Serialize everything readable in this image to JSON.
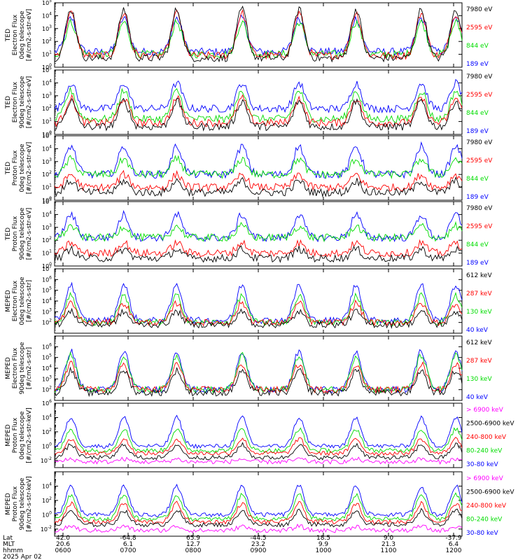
{
  "colors": {
    "blue": "#0000ff",
    "red": "#ff0000",
    "green": "#00dd00",
    "black": "#000000",
    "magenta": "#ff00ff"
  },
  "footer": {
    "row_labels": [
      "Lat",
      "MLT",
      "hhmm",
      "2025 Apr 02"
    ],
    "lat": [
      "42.0",
      "-64.8",
      "65.9",
      "-44.5",
      "18.5",
      "9.0",
      "-37.9"
    ],
    "mlt": [
      "20.6",
      "6.1",
      "12.7",
      "23.2",
      "9.9",
      "21.3",
      "6.4"
    ],
    "hhmm": [
      "0600",
      "0700",
      "0800",
      "0900",
      "1000",
      "1100",
      "1200"
    ]
  },
  "chart_data": [
    {
      "type": "line",
      "ylabel": [
        "TED",
        "Electron Flux",
        "0deg telescope",
        "[#/cm2-s-str-eV]"
      ],
      "y_scale": "log",
      "ylim_exp": [
        0,
        5
      ],
      "y_tick_exps": [
        0,
        1,
        2,
        3,
        4,
        5
      ],
      "legend": [
        {
          "text": "7980 eV",
          "color": "black"
        },
        {
          "text": "2595 eV",
          "color": "red"
        },
        {
          "text": "844 eV",
          "color": "green"
        },
        {
          "text": "189 eV",
          "color": "blue"
        }
      ],
      "series": [
        {
          "color": "blue",
          "base": 1.2,
          "peak": 3.8
        },
        {
          "color": "green",
          "base": 1.0,
          "peak": 3.5
        },
        {
          "color": "red",
          "base": 0.9,
          "peak": 4.2
        },
        {
          "color": "black",
          "base": 0.7,
          "peak": 4.5
        }
      ]
    },
    {
      "type": "line",
      "ylabel": [
        "TED",
        "Electron Flux",
        "90deg telescope",
        "[#/cm2-s-str-eV]"
      ],
      "y_scale": "log",
      "ylim_exp": [
        0,
        5
      ],
      "y_tick_exps": [
        0,
        1,
        2,
        3,
        4,
        5
      ],
      "legend": [
        {
          "text": "7980 eV",
          "color": "black"
        },
        {
          "text": "2595 eV",
          "color": "red"
        },
        {
          "text": "844 eV",
          "color": "green"
        },
        {
          "text": "189 eV",
          "color": "blue"
        }
      ],
      "series": [
        {
          "color": "blue",
          "base": 2.0,
          "peak": 4.0
        },
        {
          "color": "green",
          "base": 1.2,
          "peak": 3.4
        },
        {
          "color": "red",
          "base": 0.9,
          "peak": 2.8
        },
        {
          "color": "black",
          "base": 0.6,
          "peak": 2.6
        }
      ]
    },
    {
      "type": "line",
      "ylabel": [
        "TED",
        "Proton Flux",
        "0deg telescope",
        "[#/cm2-s-str-eV]"
      ],
      "y_scale": "log",
      "ylim_exp": [
        0,
        5
      ],
      "y_tick_exps": [
        0,
        1,
        2,
        3,
        4,
        5
      ],
      "legend": [
        {
          "text": "7980 eV",
          "color": "black"
        },
        {
          "text": "2595 eV",
          "color": "red"
        },
        {
          "text": "844 eV",
          "color": "green"
        },
        {
          "text": "189 eV",
          "color": "blue"
        }
      ],
      "series": [
        {
          "color": "blue",
          "base": 2.0,
          "peak": 4.2
        },
        {
          "color": "green",
          "base": 2.0,
          "peak": 3.2
        },
        {
          "color": "red",
          "base": 1.0,
          "peak": 2.0
        },
        {
          "color": "black",
          "base": 0.6,
          "peak": 1.5
        }
      ]
    },
    {
      "type": "line",
      "ylabel": [
        "TED",
        "Proton Flux",
        "90deg telescope",
        "[#/cm2-s-str-eV]"
      ],
      "y_scale": "log",
      "ylim_exp": [
        0,
        5
      ],
      "y_tick_exps": [
        0,
        1,
        2,
        3,
        4,
        5
      ],
      "legend": [
        {
          "text": "7980 eV",
          "color": "black"
        },
        {
          "text": "2595 eV",
          "color": "red"
        },
        {
          "text": "844 eV",
          "color": "green"
        },
        {
          "text": "189 eV",
          "color": "blue"
        }
      ],
      "series": [
        {
          "color": "blue",
          "base": 2.2,
          "peak": 4.0
        },
        {
          "color": "green",
          "base": 2.2,
          "peak": 3.1
        },
        {
          "color": "red",
          "base": 1.0,
          "peak": 1.8
        },
        {
          "color": "black",
          "base": 0.6,
          "peak": 1.3
        }
      ]
    },
    {
      "type": "line",
      "ylabel": [
        "MEPED",
        "Electron Flux",
        "0deg telescope",
        "[#/cm2-s-str]"
      ],
      "y_scale": "log",
      "ylim_exp": [
        1,
        7
      ],
      "y_tick_exps": [
        2,
        3,
        4,
        5,
        6,
        7
      ],
      "legend": [
        {
          "text": "612 keV",
          "color": "black"
        },
        {
          "text": "287 keV",
          "color": "red"
        },
        {
          "text": "130 keV",
          "color": "green"
        },
        {
          "text": "40 keV",
          "color": "blue"
        }
      ],
      "series": [
        {
          "color": "blue",
          "base": 2.2,
          "peak": 5.5
        },
        {
          "color": "green",
          "base": 2.0,
          "peak": 4.5
        },
        {
          "color": "red",
          "base": 2.0,
          "peak": 3.8
        },
        {
          "color": "black",
          "base": 1.8,
          "peak": 3.0
        }
      ]
    },
    {
      "type": "line",
      "ylabel": [
        "MEPED",
        "Electron Flux",
        "90deg telescope",
        "[#/cm2-s-str]"
      ],
      "y_scale": "log",
      "ylim_exp": [
        1,
        7
      ],
      "y_tick_exps": [
        2,
        3,
        4,
        5,
        6
      ],
      "legend": [
        {
          "text": "612 keV",
          "color": "black"
        },
        {
          "text": "287 keV",
          "color": "red"
        },
        {
          "text": "130 keV",
          "color": "green"
        },
        {
          "text": "40 keV",
          "color": "blue"
        }
      ],
      "series": [
        {
          "color": "blue",
          "base": 2.0,
          "peak": 5.6
        },
        {
          "color": "green",
          "base": 2.0,
          "peak": 5.2
        },
        {
          "color": "red",
          "base": 2.0,
          "peak": 4.4
        },
        {
          "color": "black",
          "base": 1.7,
          "peak": 3.8
        }
      ]
    },
    {
      "type": "line",
      "ylabel": [
        "MEPED",
        "Proton Flux",
        "0deg telescope",
        "[#/cm2-s-str-keV]"
      ],
      "y_scale": "log",
      "ylim_exp": [
        -3,
        6
      ],
      "y_tick_exps": [
        -2,
        0,
        2,
        4,
        6
      ],
      "legend": [
        {
          "text": "> 6900 keV",
          "color": "magenta"
        },
        {
          "text": "2500-6900 keV",
          "color": "black"
        },
        {
          "text": "240-800 keV",
          "color": "red"
        },
        {
          "text": "80-240 keV",
          "color": "green"
        },
        {
          "text": "30-80 keV",
          "color": "blue"
        }
      ],
      "series": [
        {
          "color": "blue",
          "base": 0.0,
          "peak": 4.0
        },
        {
          "color": "green",
          "base": -0.6,
          "peak": 2.4
        },
        {
          "color": "red",
          "base": -1.0,
          "peak": 1.0
        },
        {
          "color": "black",
          "base": -1.6,
          "peak": 0.2
        },
        {
          "color": "magenta",
          "base": -2.2,
          "peak": -1.8
        }
      ]
    },
    {
      "type": "line",
      "ylabel": [
        "MEPED",
        "Proton Flux",
        "90deg telescope",
        "[#/cm2-s-str-keV]"
      ],
      "y_scale": "log",
      "ylim_exp": [
        -3,
        6
      ],
      "y_tick_exps": [
        -2,
        0,
        2,
        4
      ],
      "legend": [
        {
          "text": "> 6900 keV",
          "color": "magenta"
        },
        {
          "text": "2500-6900 keV",
          "color": "black"
        },
        {
          "text": "240-800 keV",
          "color": "red"
        },
        {
          "text": "80-240 keV",
          "color": "green"
        },
        {
          "text": "30-80 keV",
          "color": "blue"
        }
      ],
      "series": [
        {
          "color": "blue",
          "base": 0.0,
          "peak": 4.0
        },
        {
          "color": "green",
          "base": -0.6,
          "peak": 2.8
        },
        {
          "color": "red",
          "base": -1.0,
          "peak": 1.6
        },
        {
          "color": "black",
          "base": -1.4,
          "peak": 0.6
        },
        {
          "color": "magenta",
          "base": -2.2,
          "peak": -1.6
        }
      ]
    }
  ]
}
